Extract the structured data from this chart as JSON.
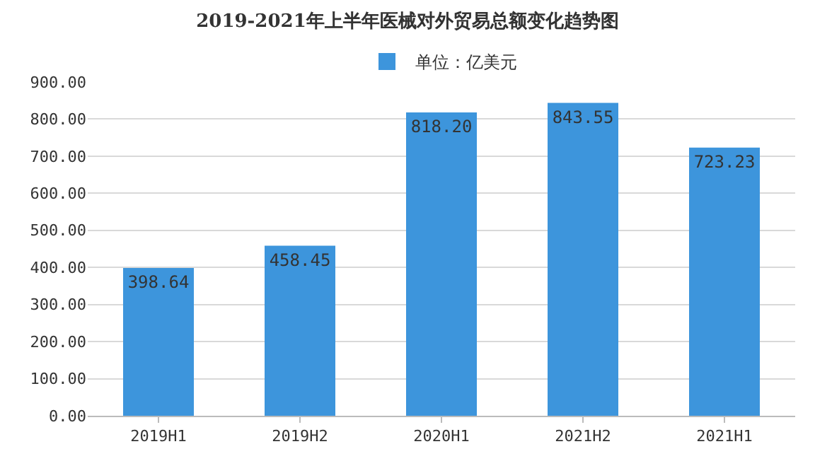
{
  "chart_data": {
    "type": "bar",
    "title": "2019-2021年上半年医械对外贸易总额变化趋势图",
    "categories": [
      "2019H1",
      "2019H2",
      "2020H1",
      "2021H2",
      "2021H1"
    ],
    "series": [
      {
        "name": "单位：亿美元",
        "color": "#3d95dc",
        "values": [
          398.64,
          458.45,
          818.2,
          843.55,
          723.23
        ],
        "value_labels": [
          "398.64",
          "458.45",
          "818.20",
          "843.55",
          "723.23"
        ]
      }
    ],
    "ylim": [
      0,
      900
    ],
    "yticks": [
      {
        "value": 0,
        "label": "0.00"
      },
      {
        "value": 100,
        "label": "100.00"
      },
      {
        "value": 200,
        "label": "200.00"
      },
      {
        "value": 300,
        "label": "300.00"
      },
      {
        "value": 400,
        "label": "400.00"
      },
      {
        "value": 500,
        "label": "500.00"
      },
      {
        "value": 600,
        "label": "600.00"
      },
      {
        "value": 700,
        "label": "700.00"
      },
      {
        "value": 800,
        "label": "800.00"
      },
      {
        "value": 900,
        "label": "900.00"
      }
    ],
    "grid": "y",
    "legend": "top"
  }
}
